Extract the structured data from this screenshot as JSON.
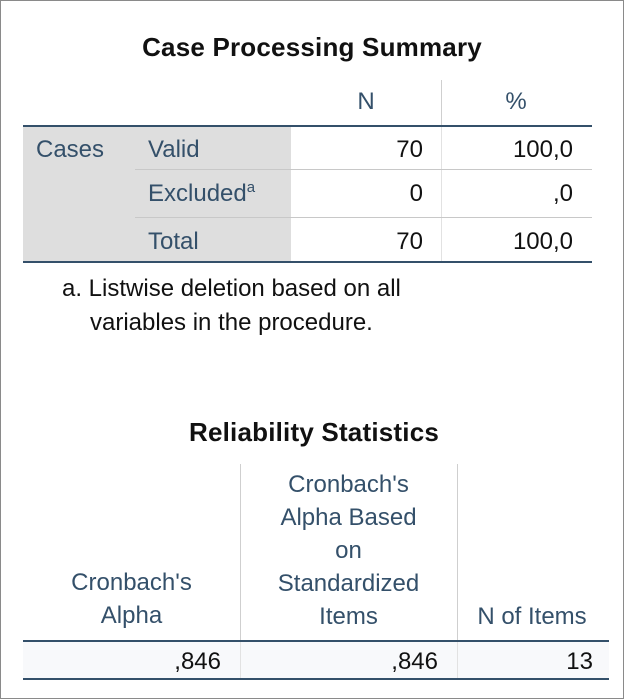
{
  "case_summary": {
    "title": "Case Processing Summary",
    "col_headers": [
      "N",
      "%"
    ],
    "group_label": "Cases",
    "rows": [
      {
        "label": "Valid",
        "sup": "",
        "n": "70",
        "pct": "100,0"
      },
      {
        "label": "Excluded",
        "sup": "a",
        "n": "0",
        "pct": ",0"
      },
      {
        "label": "Total",
        "sup": "",
        "n": "70",
        "pct": "100,0"
      }
    ],
    "footnote": {
      "line1": "a. Listwise deletion based on all",
      "line2": "variables in the procedure."
    }
  },
  "reliability": {
    "title": "Reliability Statistics",
    "col_headers": [
      {
        "lines": [
          "Cronbach's",
          "Alpha"
        ]
      },
      {
        "lines": [
          "Cronbach's",
          "Alpha Based",
          "on",
          "Standardized",
          "Items"
        ]
      },
      {
        "lines": [
          "N of Items"
        ]
      }
    ],
    "values": [
      ",846",
      ",846",
      "13"
    ]
  },
  "colors": {
    "header_text": "#34506a",
    "label_shade": "#dedede",
    "border": "#8a8a8a"
  }
}
